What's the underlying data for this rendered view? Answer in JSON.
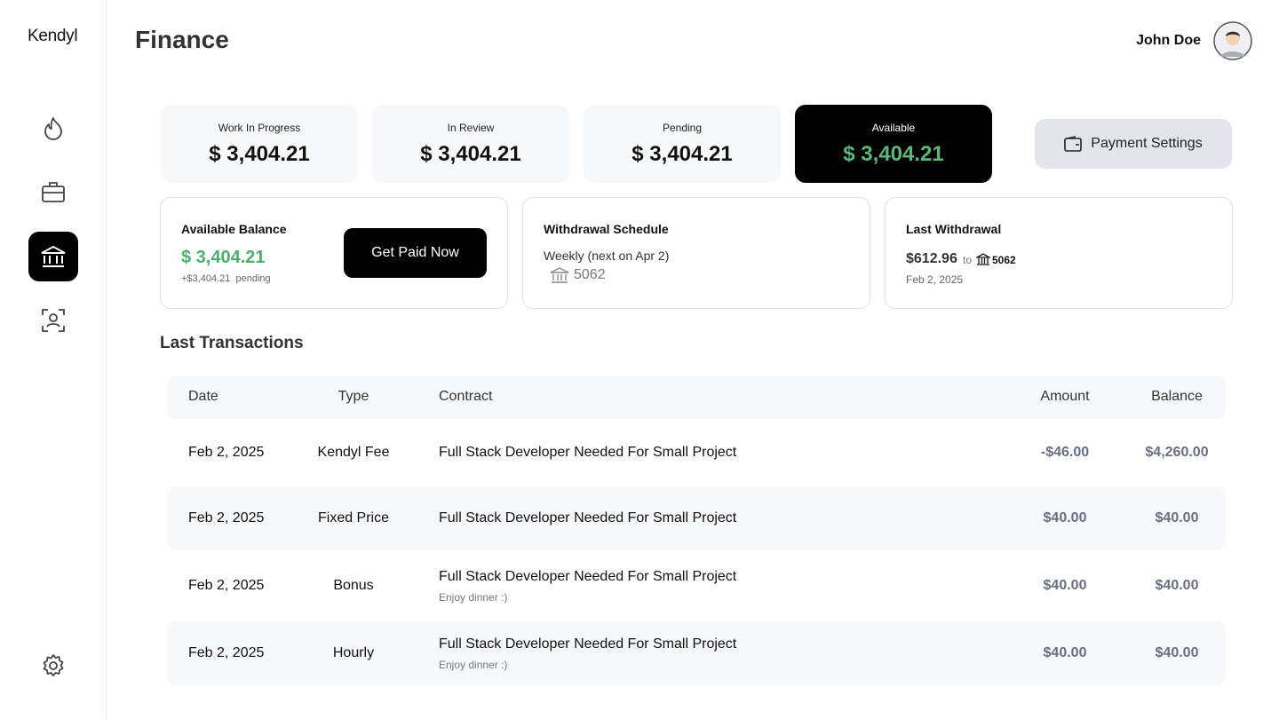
{
  "sidebar": {
    "brand": "Kendyl"
  },
  "header": {
    "title": "Finance",
    "user": "John Doe"
  },
  "stats": [
    {
      "label": "Work In Progress",
      "value": "$ 3,404.21"
    },
    {
      "label": "In Review",
      "value": "$ 3,404.21"
    },
    {
      "label": "Pending",
      "value": "$ 3,404.21"
    },
    {
      "label": "Available",
      "value": "$ 3,404.21"
    }
  ],
  "payment_settings": "Payment Settings",
  "balance": {
    "title": "Available Balance",
    "amount": "$ 3,404.21",
    "pending": "+$3,404.21  pending",
    "button": "Get Paid Now"
  },
  "schedule": {
    "title": "Withdrawal Schedule",
    "text": "Weekly (next on Apr 2)",
    "account": "5062"
  },
  "last_withdrawal": {
    "title": "Last Withdrawal",
    "amount": "$612.96",
    "to": "to",
    "account": "5062",
    "date": "Feb 2, 2025"
  },
  "transactions": {
    "title": "Last Transactions",
    "columns": [
      "Date",
      "Type",
      "Contract",
      "Amount",
      "Balance"
    ],
    "rows": [
      {
        "date": "Feb 2, 2025",
        "type": "Kendyl Fee",
        "contract": "Full Stack Developer Needed For Small Project",
        "note": null,
        "amount": "-$46.00",
        "balance": "$4,260.00"
      },
      {
        "date": "Feb 2, 2025",
        "type": "Fixed Price",
        "contract": "Full Stack Developer Needed For Small Project",
        "note": null,
        "amount": "$40.00",
        "balance": "$40.00"
      },
      {
        "date": "Feb 2, 2025",
        "type": "Bonus",
        "contract": "Full Stack Developer Needed For Small Project",
        "note": "Enjoy dinner :)",
        "amount": "$40.00",
        "balance": "$40.00"
      },
      {
        "date": "Feb 2, 2025",
        "type": "Hourly",
        "contract": "Full Stack Developer Needed For Small Project",
        "note": "Enjoy dinner :)",
        "amount": "$40.00",
        "balance": "$40.00"
      }
    ]
  }
}
